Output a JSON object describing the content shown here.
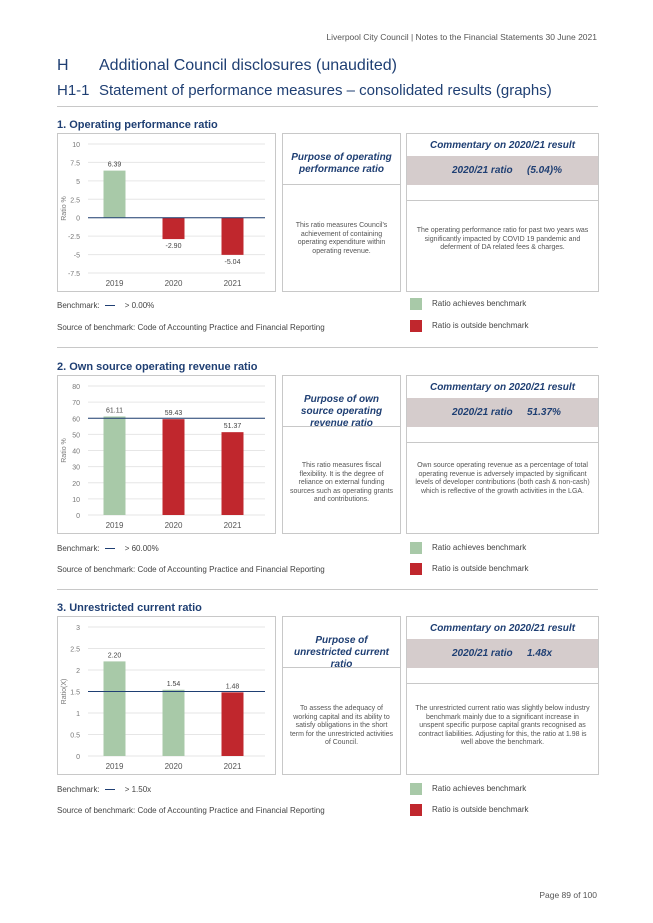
{
  "header": "Liverpool City Council | Notes to the Financial Statements 30 June 2021",
  "section_letter": "H",
  "section_title": "Additional Council disclosures (unaudited)",
  "subsection_number": "H1-1",
  "subsection_title": "Statement of performance measures – consolidated results (graphs)",
  "colors": {
    "pass": "#a8c9a8",
    "fail": "#c0272d",
    "accent": "#1f3f73",
    "band": "#d5cccc"
  },
  "legend": {
    "achieves": "Ratio achieves benchmark",
    "outside": "Ratio is outside benchmark"
  },
  "benchmark_label": "Benchmark:",
  "source_text": "Source of benchmark: Code of Accounting Practice and Financial Reporting",
  "sections": [
    {
      "title": "1. Operating performance ratio",
      "purpose_title": "Purpose of operating performance ratio",
      "purpose_text": "This ratio measures Council's achievement of containing operating expenditure within operating revenue.",
      "commentary_title": "Commentary on 2020/21 result",
      "ratio_label": "2020/21 ratio",
      "ratio_value": "(5.04)%",
      "commentary_text": "The operating performance ratio for past two years was significantly impacted by COVID 19 pandemic and deferment of DA related fees & charges.",
      "benchmark_value": "> 0.00%"
    },
    {
      "title": "2. Own source operating revenue ratio",
      "purpose_title": "Purpose of own source operating revenue ratio",
      "purpose_text": "This ratio measures fiscal flexibility. It is the degree of reliance on external funding sources such as operating grants and contributions.",
      "commentary_title": "Commentary on 2020/21 result",
      "ratio_label": "2020/21 ratio",
      "ratio_value": "51.37%",
      "commentary_text": "Own source operating revenue as a percentage of total operating revenue is adversely impacted by significant levels of developer contributions (both cash & non-cash) which is reflective of the growth activities in the LGA.",
      "benchmark_value": "> 60.00%"
    },
    {
      "title": "3. Unrestricted current ratio",
      "purpose_title": "Purpose of unrestricted current ratio",
      "purpose_text": "To assess the adequacy of working capital and its ability to satisfy obligations in the short term for the unrestricted activities of Council.",
      "commentary_title": "Commentary on 2020/21 result",
      "ratio_label": "2020/21 ratio",
      "ratio_value": "1.48x",
      "commentary_text": "The unrestricted current ratio was slightly below industry benchmark mainly due to a significant increase in unspent specific purpose capital grants recognised as contract liabilities. Adjusting for this, the ratio at 1.98 is well above the benchmark.",
      "benchmark_value": "> 1.50x"
    }
  ],
  "chart_data": [
    {
      "type": "bar",
      "categories": [
        "2019",
        "2020",
        "2021"
      ],
      "values": [
        6.39,
        -2.9,
        -5.04
      ],
      "data_labels": [
        "6.39",
        "-2.90",
        "-5.04"
      ],
      "status": [
        "pass",
        "fail",
        "fail"
      ],
      "ylabel": "Ratio %",
      "ylim": [
        -7.5,
        10
      ],
      "yticks": [
        10,
        7.5,
        5,
        2.5,
        0,
        -2.5,
        -5,
        -7.5
      ],
      "ytick_labels": [
        "10",
        "7.5",
        "5",
        "2.5",
        "0",
        "-2.5",
        "-5",
        "-7.5"
      ],
      "benchmark": 0
    },
    {
      "type": "bar",
      "categories": [
        "2019",
        "2020",
        "2021"
      ],
      "values": [
        61.11,
        59.43,
        51.37
      ],
      "data_labels": [
        "61.11",
        "59.43",
        "51.37"
      ],
      "status": [
        "pass",
        "fail",
        "fail"
      ],
      "ylabel": "Ratio %",
      "ylim": [
        0,
        80
      ],
      "yticks": [
        80,
        70,
        60,
        50,
        40,
        30,
        20,
        10,
        0
      ],
      "ytick_labels": [
        "80",
        "70",
        "60",
        "50",
        "40",
        "30",
        "20",
        "10",
        "0"
      ],
      "benchmark": 60
    },
    {
      "type": "bar",
      "categories": [
        "2019",
        "2020",
        "2021"
      ],
      "values": [
        2.2,
        1.54,
        1.48
      ],
      "data_labels": [
        "2.20",
        "1.54",
        "1.48"
      ],
      "status": [
        "pass",
        "pass",
        "fail"
      ],
      "ylabel": "Ratio(X)",
      "ylim": [
        0,
        3
      ],
      "yticks": [
        3,
        2.5,
        2,
        1.5,
        1,
        0.5,
        0
      ],
      "ytick_labels": [
        "3",
        "2.5",
        "2",
        "1.5",
        "1",
        "0.5",
        "0"
      ],
      "benchmark": 1.5
    }
  ],
  "footer": "Page 89 of 100"
}
